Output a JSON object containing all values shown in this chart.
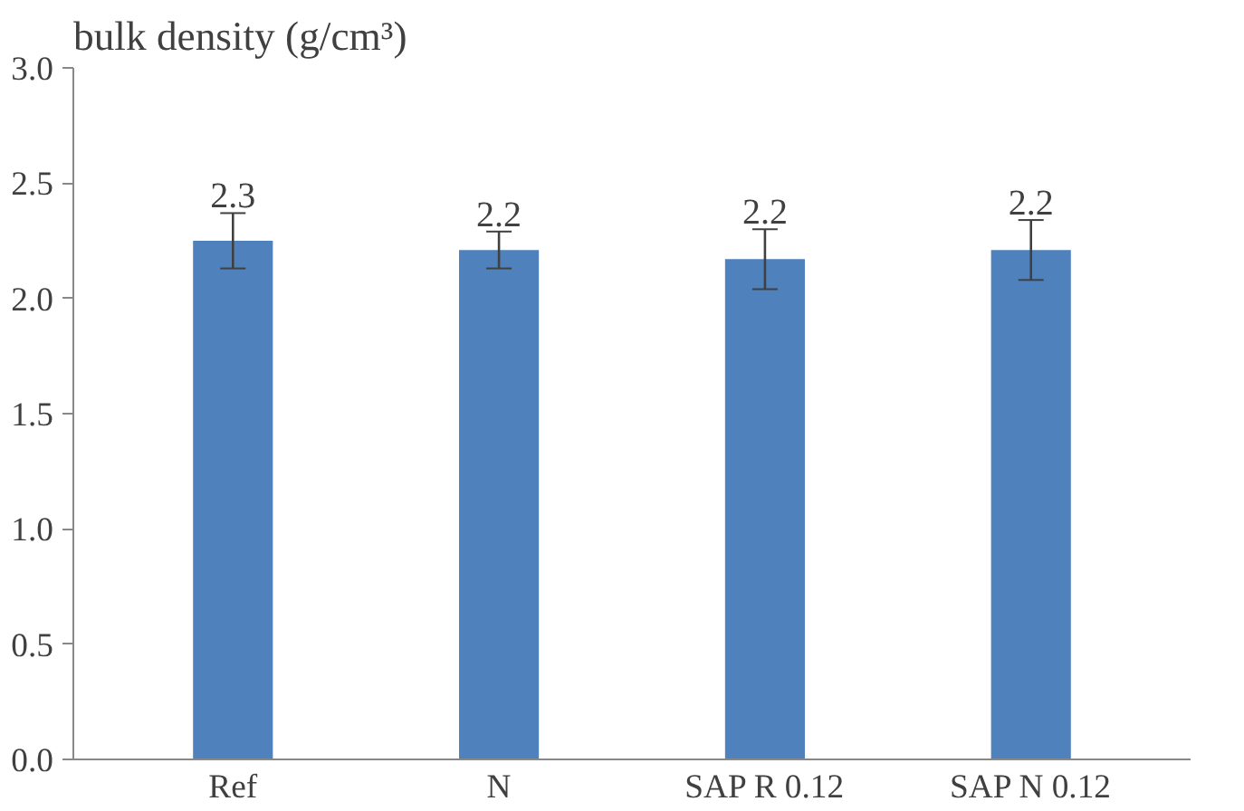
{
  "chart_data": {
    "type": "bar",
    "title": "bulk density (g/cm³)",
    "categories": [
      "Ref",
      "N",
      "SAP R 0.12",
      "SAP N 0.12"
    ],
    "values": [
      2.25,
      2.21,
      2.17,
      2.21
    ],
    "errors": [
      0.12,
      0.08,
      0.13,
      0.13
    ],
    "value_labels": [
      "2.3",
      "2.2",
      "2.2",
      "2.2"
    ],
    "color": "#4f81bd",
    "ylim": [
      0,
      3
    ],
    "yticks": [
      {
        "value": 0,
        "label": "0.0"
      },
      {
        "value": 0.5,
        "label": "0.5"
      },
      {
        "value": 1,
        "label": "1.0"
      },
      {
        "value": 1.5,
        "label": "1.5"
      },
      {
        "value": 2,
        "label": "2.0"
      },
      {
        "value": 2.5,
        "label": "2.5"
      },
      {
        "value": 3,
        "label": "3.0"
      }
    ],
    "grid": false
  }
}
